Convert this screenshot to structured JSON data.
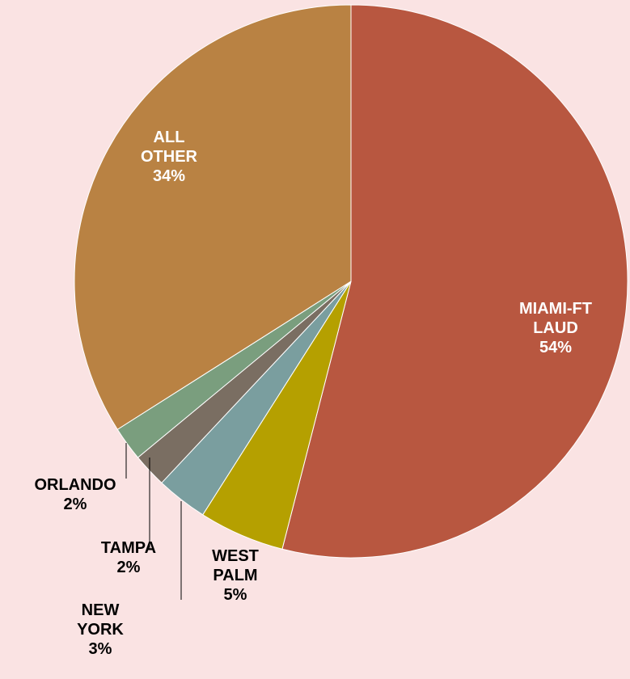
{
  "chart_data": {
    "type": "pie",
    "categories": [
      "MIAMI-FT LAUD",
      "WEST PALM",
      "NEW YORK",
      "TAMPA",
      "ORLANDO",
      "ALL OTHER"
    ],
    "values": [
      54,
      5,
      3,
      2,
      2,
      34
    ],
    "value_labels": [
      "54%",
      "5%",
      "3%",
      "2%",
      "2%",
      "34%"
    ],
    "colors": [
      "#b85740",
      "#b5a000",
      "#7a9e9f",
      "#7a6e62",
      "#7a9e7e",
      "#b98243"
    ]
  }
}
